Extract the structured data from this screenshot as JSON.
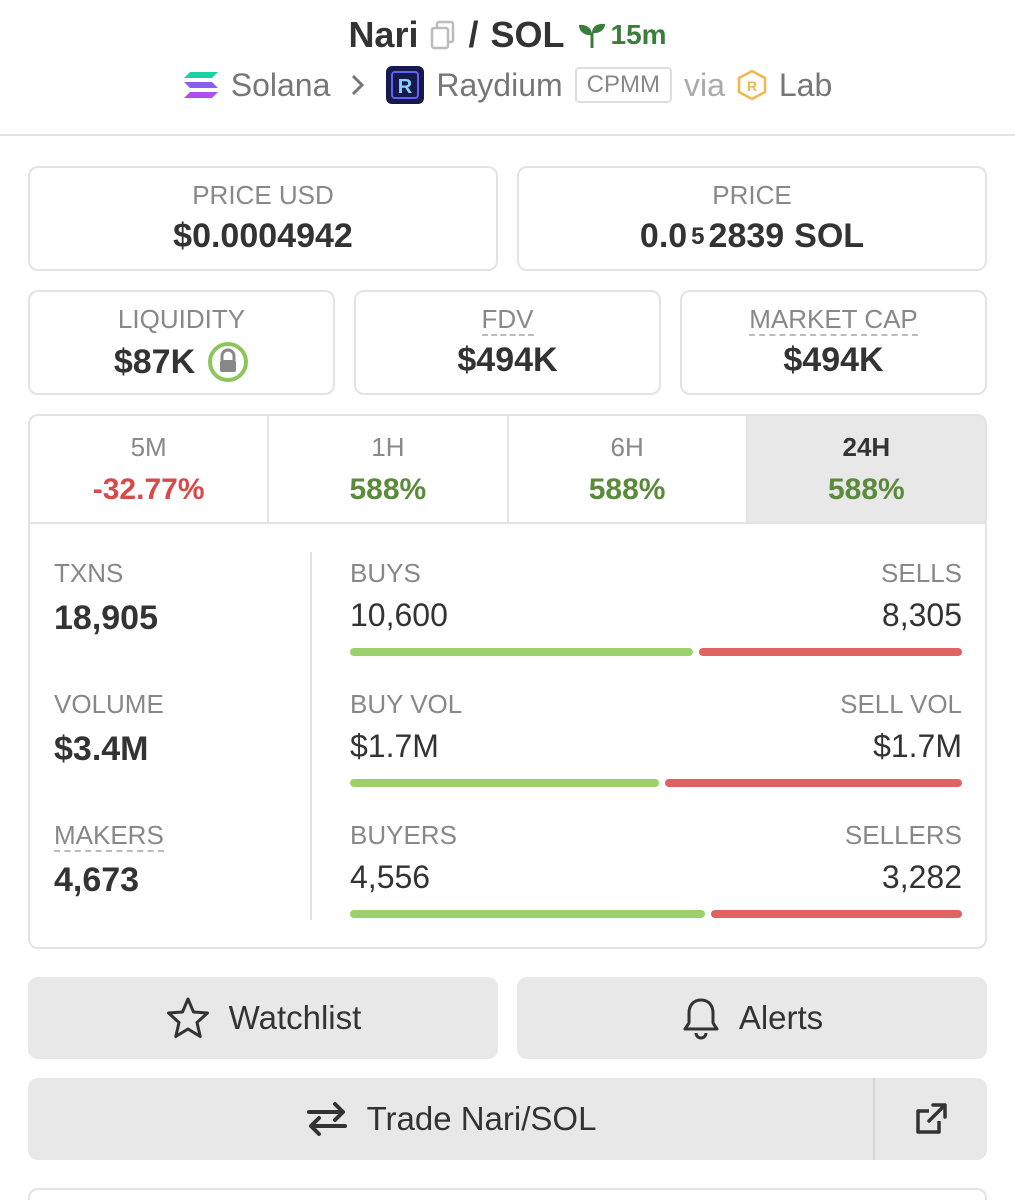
{
  "header": {
    "token": "Nari",
    "separator": "/",
    "quote": "SOL",
    "age": "15m",
    "chain": "Solana",
    "dex": "Raydium",
    "pool_type": "CPMM",
    "via": "via",
    "launchpad": "Lab"
  },
  "price_usd": {
    "label": "PRICE USD",
    "value": "$0.0004942"
  },
  "price_native": {
    "label": "PRICE",
    "prefix": "0.0",
    "subscript": "5",
    "digits": "2839",
    "unit": "SOL"
  },
  "liquidity": {
    "label": "LIQUIDITY",
    "value": "$87K"
  },
  "fdv": {
    "label": "FDV",
    "value": "$494K"
  },
  "market_cap": {
    "label": "MARKET CAP",
    "value": "$494K"
  },
  "tabs": [
    {
      "label": "5M",
      "change": "-32.77%"
    },
    {
      "label": "1H",
      "change": "588%"
    },
    {
      "label": "6H",
      "change": "588%"
    },
    {
      "label": "24H",
      "change": "588%"
    }
  ],
  "stats": {
    "txns": {
      "label": "TXNS",
      "value": "18,905"
    },
    "volume": {
      "label": "VOLUME",
      "value": "$3.4M"
    },
    "makers": {
      "label": "MAKERS",
      "value": "4,673"
    },
    "buys": {
      "label": "BUYS",
      "value": "10,600"
    },
    "sells": {
      "label": "SELLS",
      "value": "8,305"
    },
    "buy_vol": {
      "label": "BUY VOL",
      "value": "$1.7M"
    },
    "sell_vol": {
      "label": "SELL VOL",
      "value": "$1.7M"
    },
    "buyers": {
      "label": "BUYERS",
      "value": "4,556"
    },
    "sellers": {
      "label": "SELLERS",
      "value": "3,282"
    }
  },
  "buttons": {
    "watchlist": "Watchlist",
    "alerts": "Alerts",
    "trade": "Trade Nari/SOL"
  },
  "colors": {
    "positive": "#5a8a3a",
    "negative": "#d84a4a",
    "buy_bar": "#9bd06a",
    "sell_bar": "#e06262"
  }
}
